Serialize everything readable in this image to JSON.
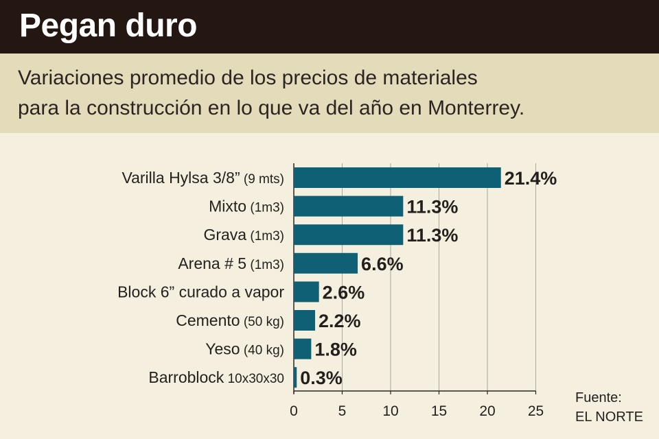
{
  "header": {
    "title": "Pegan duro",
    "subtitle_line1": "Variaciones promedio de los precios de materiales",
    "subtitle_line2": "para la construcción en lo que va del año en Monterrey."
  },
  "source": {
    "line1": "Fuente:",
    "line2": "EL NORTE"
  },
  "colors": {
    "header_bg": "#241712",
    "subtitle_bg": "#e3dbba",
    "chart_bg": "#f4efde",
    "bar": "#0f6075"
  },
  "chart_data": {
    "type": "bar",
    "orientation": "horizontal",
    "categories": [
      {
        "name": "Varilla Hylsa 3/8”",
        "unit": "(9 mts)"
      },
      {
        "name": "Mixto",
        "unit": "(1m3)"
      },
      {
        "name": "Grava",
        "unit": "(1m3)"
      },
      {
        "name": "Arena # 5",
        "unit": "(1m3)"
      },
      {
        "name": "Block 6” curado a vapor",
        "unit": ""
      },
      {
        "name": "Cemento",
        "unit": "(50 kg)"
      },
      {
        "name": "Yeso",
        "unit": "(40 kg)"
      },
      {
        "name": "Barroblock",
        "unit": "10x30x30"
      }
    ],
    "values": [
      21.4,
      11.3,
      11.3,
      6.6,
      2.6,
      2.2,
      1.8,
      0.3
    ],
    "value_labels": [
      "21.4%",
      "11.3%",
      "11.3%",
      "6.6%",
      "2.6%",
      "2.2%",
      "1.8%",
      "0.3%"
    ],
    "xlim": [
      0,
      25
    ],
    "xticks": [
      0,
      5,
      10,
      15,
      20,
      25
    ],
    "grid": "vertical"
  }
}
